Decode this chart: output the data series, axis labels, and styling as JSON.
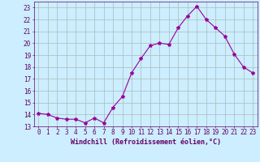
{
  "x": [
    0,
    1,
    2,
    3,
    4,
    5,
    6,
    7,
    8,
    9,
    10,
    11,
    12,
    13,
    14,
    15,
    16,
    17,
    18,
    19,
    20,
    21,
    22,
    23
  ],
  "y": [
    14.1,
    14.0,
    13.7,
    13.6,
    13.6,
    13.3,
    13.7,
    13.3,
    14.6,
    15.5,
    17.5,
    18.7,
    19.8,
    20.0,
    19.9,
    21.3,
    22.3,
    23.1,
    22.0,
    21.3,
    20.6,
    19.1,
    18.0,
    17.5
  ],
  "line_color": "#990099",
  "marker": "*",
  "marker_size": 3,
  "bg_color": "#cceeff",
  "grid_color": "#aabbbb",
  "xlabel": "Windchill (Refroidissement éolien,°C)",
  "xlim": [
    -0.5,
    23.5
  ],
  "ylim": [
    13.0,
    23.5
  ],
  "yticks": [
    13,
    14,
    15,
    16,
    17,
    18,
    19,
    20,
    21,
    22,
    23
  ],
  "xticks": [
    0,
    1,
    2,
    3,
    4,
    5,
    6,
    7,
    8,
    9,
    10,
    11,
    12,
    13,
    14,
    15,
    16,
    17,
    18,
    19,
    20,
    21,
    22,
    23
  ],
  "tick_color": "#660066",
  "label_color": "#660066",
  "label_fontsize": 6,
  "tick_fontsize": 5.5
}
